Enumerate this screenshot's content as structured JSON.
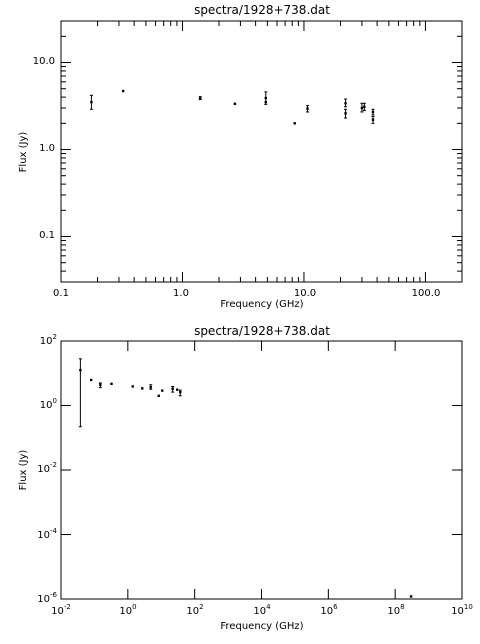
{
  "chart_data": [
    {
      "type": "scatter",
      "title": "spectra/1928+738.dat",
      "xlabel": "Frequency (GHz)",
      "ylabel": "Flux (Jy)",
      "x_scale": "log",
      "y_scale": "log",
      "xlim": [
        0.1,
        200
      ],
      "ylim": [
        0.03,
        30
      ],
      "x_tick_labels": [
        {
          "value": 0.1,
          "label": "0.1"
        },
        {
          "value": 1,
          "label": "1.0"
        },
        {
          "value": 10,
          "label": "10.0"
        },
        {
          "value": 100,
          "label": "100.0"
        }
      ],
      "y_tick_labels": [
        {
          "value": 0.1,
          "label": "0.1"
        },
        {
          "value": 1,
          "label": "1.0"
        },
        {
          "value": 10,
          "label": "10.0"
        }
      ],
      "grid": false,
      "points": [
        {
          "x": 0.178,
          "y": 3.5,
          "err_lo": 2.9,
          "err_hi": 4.2
        },
        {
          "x": 0.325,
          "y": 4.7
        },
        {
          "x": 1.4,
          "y": 3.9,
          "err_lo": 3.75,
          "err_hi": 4.05
        },
        {
          "x": 2.7,
          "y": 3.35
        },
        {
          "x": 4.85,
          "y": 3.9,
          "err_lo": 3.3,
          "err_hi": 4.6
        },
        {
          "x": 4.85,
          "y": 3.5
        },
        {
          "x": 8.4,
          "y": 2.0
        },
        {
          "x": 10.7,
          "y": 2.95,
          "err_lo": 2.7,
          "err_hi": 3.2
        },
        {
          "x": 22,
          "y": 3.4,
          "err_lo": 3.1,
          "err_hi": 3.8
        },
        {
          "x": 22,
          "y": 2.6,
          "err_lo": 2.3,
          "err_hi": 2.9
        },
        {
          "x": 30,
          "y": 3.0,
          "err_lo": 2.7,
          "err_hi": 3.4
        },
        {
          "x": 31.4,
          "y": 3.1,
          "err_lo": 2.8,
          "err_hi": 3.4
        },
        {
          "x": 37,
          "y": 2.7,
          "err_lo": 2.5,
          "err_hi": 2.9
        },
        {
          "x": 37,
          "y": 2.2,
          "err_lo": 2.0,
          "err_hi": 2.4
        }
      ]
    },
    {
      "type": "scatter",
      "title": "spectra/1928+738.dat",
      "xlabel": "Frequency (GHz)",
      "ylabel": "Flux (Jy)",
      "x_scale": "log",
      "y_scale": "log",
      "xlim": [
        0.01,
        10000000000.0
      ],
      "ylim": [
        1e-06,
        100
      ],
      "x_tick_labels": [
        {
          "value": 0.01,
          "base": "10",
          "exp": "-2"
        },
        {
          "value": 1,
          "base": "10",
          "exp": "0"
        },
        {
          "value": 100,
          "base": "10",
          "exp": "2"
        },
        {
          "value": 10000,
          "base": "10",
          "exp": "4"
        },
        {
          "value": 1000000,
          "base": "10",
          "exp": "6"
        },
        {
          "value": 100000000,
          "base": "10",
          "exp": "8"
        },
        {
          "value": 10000000000,
          "base": "10",
          "exp": "10"
        }
      ],
      "y_tick_labels": [
        {
          "value": 1e-06,
          "base": "10",
          "exp": "-6"
        },
        {
          "value": 0.0001,
          "base": "10",
          "exp": "-4"
        },
        {
          "value": 0.01,
          "base": "10",
          "exp": "-2"
        },
        {
          "value": 1,
          "base": "10",
          "exp": "0"
        },
        {
          "value": 100,
          "base": "10",
          "exp": "2"
        }
      ],
      "grid": false,
      "points": [
        {
          "x": 0.038,
          "y": 12.5,
          "err_lo": 0.22,
          "err_hi": 28
        },
        {
          "x": 0.08,
          "y": 6.2
        },
        {
          "x": 0.15,
          "y": 4.4,
          "err_lo": 3.6,
          "err_hi": 5.0
        },
        {
          "x": 0.325,
          "y": 4.7
        },
        {
          "x": 1.4,
          "y": 3.9
        },
        {
          "x": 2.7,
          "y": 3.4
        },
        {
          "x": 4.85,
          "y": 3.7,
          "err_lo": 3.2,
          "err_hi": 4.4
        },
        {
          "x": 8.4,
          "y": 2.0
        },
        {
          "x": 10.7,
          "y": 2.9
        },
        {
          "x": 22,
          "y": 3.3,
          "err_lo": 2.6,
          "err_hi": 3.9
        },
        {
          "x": 30,
          "y": 3.1
        },
        {
          "x": 37,
          "y": 2.6,
          "err_lo": 2.0,
          "err_hi": 3.0
        },
        {
          "x": 300000000,
          "y": 1.2e-06
        }
      ]
    }
  ]
}
